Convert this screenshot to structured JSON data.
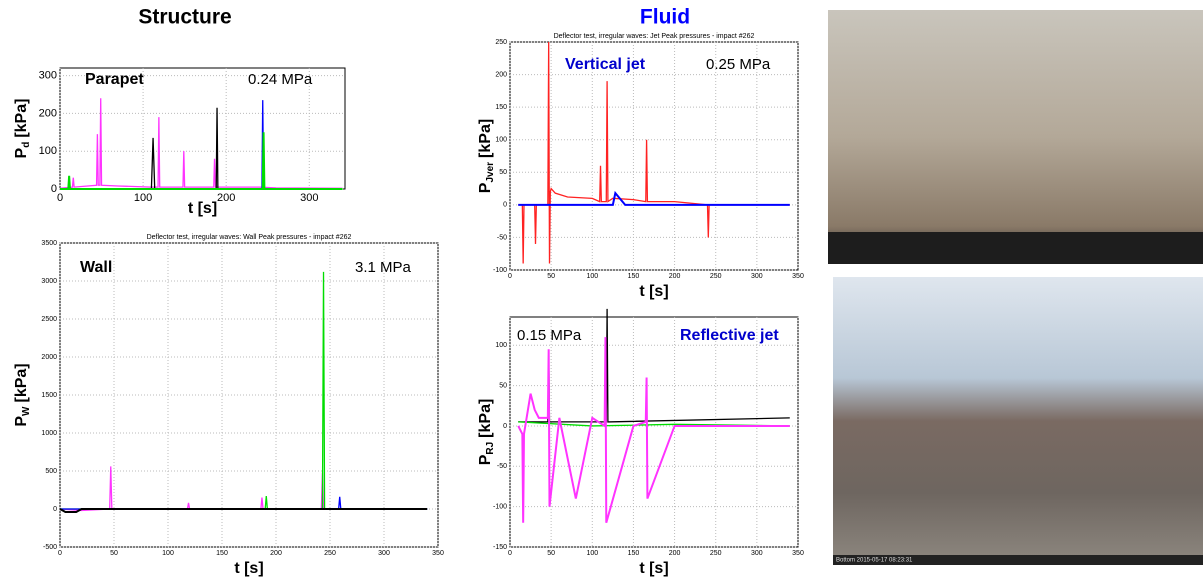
{
  "headings": {
    "structure": "Structure",
    "fluid": "Fluid"
  },
  "photo_caption": "Bottom 2015-05-17 08:23:31",
  "chart_data": [
    {
      "type": "line",
      "label": "Parapet",
      "annotation": "0.24 MPa",
      "xlabel": "t [s]",
      "ylabel_symbol": "P",
      "ylabel_subscript": "d",
      "ylabel_unit": "[kPa]",
      "xlim": [
        0,
        343
      ],
      "ylim": [
        0,
        320
      ],
      "xticks": [
        0,
        100,
        200,
        300
      ],
      "yticks": [
        0,
        100,
        200,
        300
      ],
      "grid": true,
      "series": [
        {
          "color": "#ff33ff",
          "x": [
            0,
            15,
            16,
            17,
            44,
            45,
            46,
            48,
            49,
            50,
            70,
            110,
            118,
            119,
            120,
            148,
            149,
            150,
            185,
            186,
            187,
            240,
            260,
            340
          ],
          "values": [
            2,
            5,
            30,
            5,
            10,
            145,
            10,
            10,
            240,
            10,
            8,
            5,
            5,
            190,
            5,
            5,
            100,
            5,
            5,
            80,
            5,
            5,
            3,
            2
          ]
        },
        {
          "color": "#000000",
          "x": [
            0,
            110,
            112,
            114,
            188,
            189,
            190,
            340
          ],
          "values": [
            0,
            0,
            135,
            0,
            0,
            215,
            0,
            0
          ]
        },
        {
          "color": "#0000ff",
          "x": [
            0,
            243,
            244,
            245,
            340
          ],
          "values": [
            0,
            0,
            235,
            0,
            0
          ]
        },
        {
          "color": "#00dd00",
          "x": [
            0,
            10,
            11,
            12,
            244,
            245,
            246,
            340
          ],
          "values": [
            0,
            0,
            35,
            0,
            0,
            150,
            0,
            0
          ]
        }
      ]
    },
    {
      "type": "line",
      "title": "Deflector test, irregular waves: Wall Peak pressures - impact #262",
      "label": "Wall",
      "annotation": "3.1 MPa",
      "xlabel": "t [s]",
      "ylabel_symbol": "P",
      "ylabel_subscript": "W",
      "ylabel_unit": "[kPa]",
      "xlim": [
        0,
        350
      ],
      "ylim": [
        -500,
        3500
      ],
      "xticks": [
        0,
        50,
        100,
        150,
        200,
        250,
        300,
        350
      ],
      "yticks": [
        -500,
        0,
        500,
        1000,
        1500,
        2000,
        2500,
        3000,
        3500
      ],
      "grid": true,
      "series": [
        {
          "color": "#ff33ff",
          "x": [
            0,
            20,
            46,
            47,
            48,
            118,
            119,
            120,
            186,
            187,
            188,
            242,
            243,
            244,
            340
          ],
          "values": [
            0,
            -20,
            0,
            560,
            0,
            0,
            80,
            0,
            0,
            150,
            0,
            0,
            480,
            0,
            0
          ]
        },
        {
          "color": "#00dd00",
          "x": [
            0,
            190,
            191,
            192,
            243,
            244,
            245,
            340
          ],
          "values": [
            0,
            0,
            170,
            0,
            0,
            3120,
            0,
            0
          ]
        },
        {
          "color": "#0000ff",
          "x": [
            0,
            258,
            259,
            260,
            340
          ],
          "values": [
            0,
            0,
            160,
            0,
            0
          ]
        },
        {
          "color": "#000000",
          "x": [
            0,
            5,
            15,
            20,
            340
          ],
          "values": [
            0,
            -40,
            -40,
            0,
            0
          ]
        }
      ]
    },
    {
      "type": "line",
      "title": "Deflector test, irregular waves: Jet Peak pressures - impact #262",
      "label": "Vertical jet",
      "annotation": "0.25 MPa",
      "xlabel": "t [s]",
      "ylabel_symbol": "P",
      "ylabel_subscript": "Jver",
      "ylabel_unit": "[kPa]",
      "xlim": [
        0,
        350
      ],
      "ylim": [
        -100,
        250
      ],
      "xticks": [
        0,
        50,
        100,
        150,
        200,
        250,
        300,
        350
      ],
      "yticks": [
        -100,
        -50,
        0,
        50,
        100,
        150,
        200,
        250
      ],
      "grid": true,
      "series": [
        {
          "color": "#ff2222",
          "x": [
            10,
            15,
            16,
            17,
            30,
            31,
            32,
            46,
            47,
            48,
            49,
            50,
            55,
            70,
            100,
            109,
            110,
            111,
            117,
            118,
            119,
            125,
            150,
            165,
            166,
            167,
            200,
            240,
            241,
            242,
            340
          ],
          "values": [
            0,
            0,
            -90,
            0,
            0,
            -60,
            0,
            0,
            250,
            -90,
            20,
            25,
            18,
            12,
            10,
            5,
            60,
            5,
            5,
            190,
            5,
            10,
            8,
            5,
            100,
            5,
            5,
            0,
            -50,
            0,
            0
          ]
        },
        {
          "color": "#0000ff",
          "x": [
            10,
            100,
            125,
            128,
            140,
            340
          ],
          "values": [
            0,
            0,
            0,
            18,
            0,
            0
          ]
        }
      ]
    },
    {
      "type": "line",
      "label": "Reflective jet",
      "annotation": "0.15 MPa",
      "xlabel": "t [s]",
      "ylabel_symbol": "P",
      "ylabel_subscript": "RJ",
      "ylabel_unit": "[kPa]",
      "xlim": [
        0,
        350
      ],
      "ylim": [
        -150,
        135
      ],
      "xticks": [
        0,
        50,
        100,
        150,
        200,
        250,
        300,
        350
      ],
      "yticks": [
        -150,
        -100,
        -50,
        0,
        50,
        100
      ],
      "grid": true,
      "series": [
        {
          "color": "#000000",
          "x": [
            10,
            46,
            47,
            48,
            117,
            118,
            119,
            340
          ],
          "values": [
            5,
            5,
            90,
            5,
            5,
            145,
            5,
            10
          ]
        },
        {
          "color": "#00dd00",
          "x": [
            10,
            100,
            200,
            340
          ],
          "values": [
            5,
            0,
            2,
            0
          ]
        },
        {
          "color": "#ff33ff",
          "x": [
            10,
            15,
            16,
            17,
            25,
            30,
            35,
            46,
            47,
            48,
            60,
            80,
            100,
            115,
            116,
            117,
            150,
            165,
            166,
            167,
            200,
            250,
            300,
            340
          ],
          "values": [
            0,
            -10,
            -120,
            -10,
            40,
            20,
            10,
            10,
            95,
            -100,
            10,
            -90,
            10,
            0,
            110,
            -120,
            0,
            5,
            60,
            -90,
            0,
            0,
            0,
            0
          ]
        }
      ]
    }
  ]
}
